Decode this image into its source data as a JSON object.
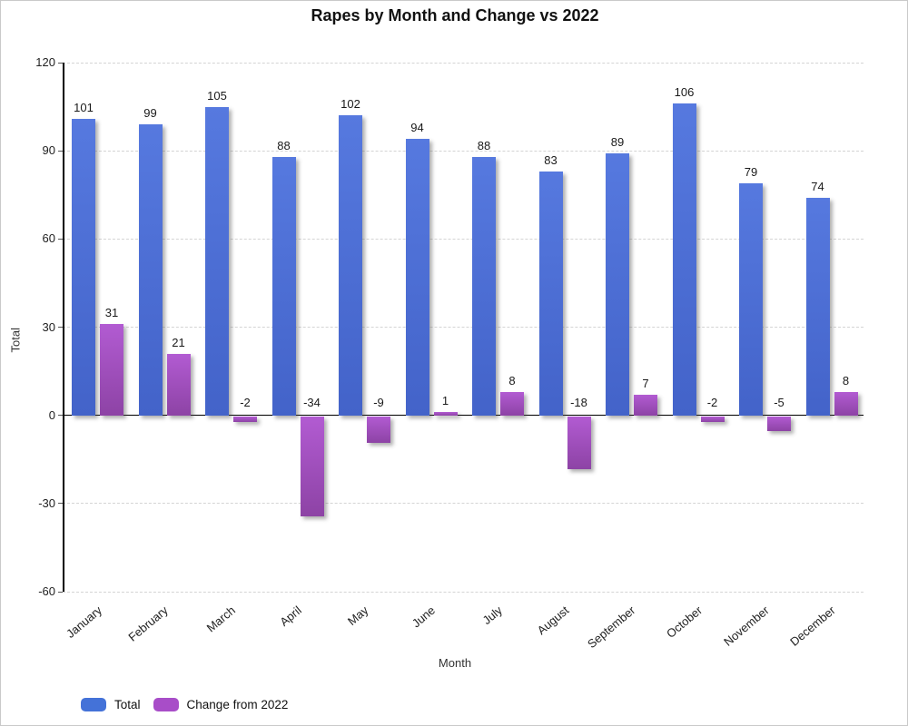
{
  "title": "Rapes by Month and Change vs 2022",
  "axes": {
    "x_title": "Month",
    "y_title": "Total"
  },
  "legend": {
    "items": [
      {
        "label": "Total",
        "color": "#4472d8"
      },
      {
        "label": "Change from 2022",
        "color": "#a84dc8"
      }
    ]
  },
  "chart_data": {
    "type": "bar",
    "title": "Rapes by Month and Change vs 2022",
    "xlabel": "Month",
    "ylabel": "Total",
    "categories": [
      "January",
      "February",
      "March",
      "April",
      "May",
      "June",
      "July",
      "August",
      "September",
      "October",
      "November",
      "December"
    ],
    "series": [
      {
        "name": "Total",
        "color": "#4472d8",
        "values": [
          101,
          99,
          105,
          88,
          102,
          94,
          88,
          83,
          89,
          106,
          79,
          74
        ]
      },
      {
        "name": "Change from 2022",
        "color": "#a84dc8",
        "values": [
          31,
          21,
          -2,
          -34,
          -9,
          1,
          8,
          -18,
          7,
          -2,
          -5,
          8
        ]
      }
    ],
    "ylim": [
      -60,
      120
    ],
    "yticks": [
      -60,
      -30,
      0,
      30,
      60,
      90,
      120
    ],
    "grid": true,
    "grid_style": "dashed",
    "bar_labels": true,
    "legend_position": "bottom-left"
  }
}
